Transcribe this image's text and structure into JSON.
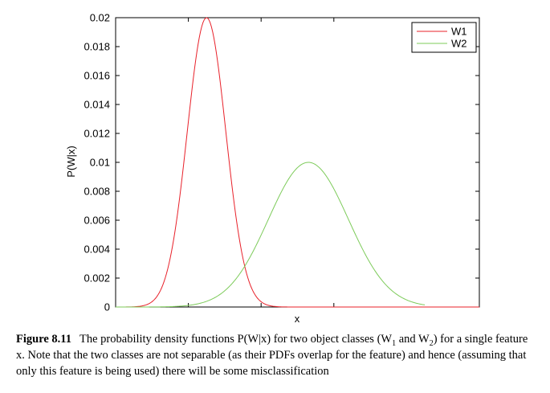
{
  "chart_data": {
    "type": "line",
    "xlabel": "x",
    "ylabel": "P(W|x)",
    "ylim": [
      0,
      0.02
    ],
    "xlim": [
      0,
      1
    ],
    "yticks": [
      0,
      0.002,
      0.004,
      0.006,
      0.008,
      0.01,
      0.012,
      0.014,
      0.016,
      0.018,
      0.02
    ],
    "ytick_labels": [
      "0",
      "0.002",
      "0.004",
      "0.006",
      "0.008",
      "0.01",
      "0.012",
      "0.014",
      "0.016",
      "0.018",
      "0.02"
    ],
    "xticks": [
      0.2,
      0.4,
      0.6
    ],
    "x_tick_labels_shown": false,
    "grid": false,
    "legend": "top-right",
    "series": [
      {
        "name": "W1",
        "color": "#e8212a",
        "mean": 0.25,
        "sd": 0.053,
        "peak": 0.02,
        "x_range": [
          0,
          1
        ]
      },
      {
        "name": "W2",
        "color": "#7dcb5a",
        "mean": 0.53,
        "sd": 0.11,
        "peak": 0.01,
        "x_range": [
          0,
          0.85
        ]
      }
    ]
  },
  "caption": {
    "label": "Figure 8.11",
    "parts": [
      {
        "t": "The probability density functions P(W|x) for two object classes (W"
      },
      {
        "sub": "1"
      },
      {
        "t": " and W"
      },
      {
        "sub": "2"
      },
      {
        "t": ") for a single feature x. Note that the two classes are not separable (as their PDFs overlap for the feature) and hence (assuming that only this feature is being used) there will be some misclassification"
      }
    ]
  }
}
